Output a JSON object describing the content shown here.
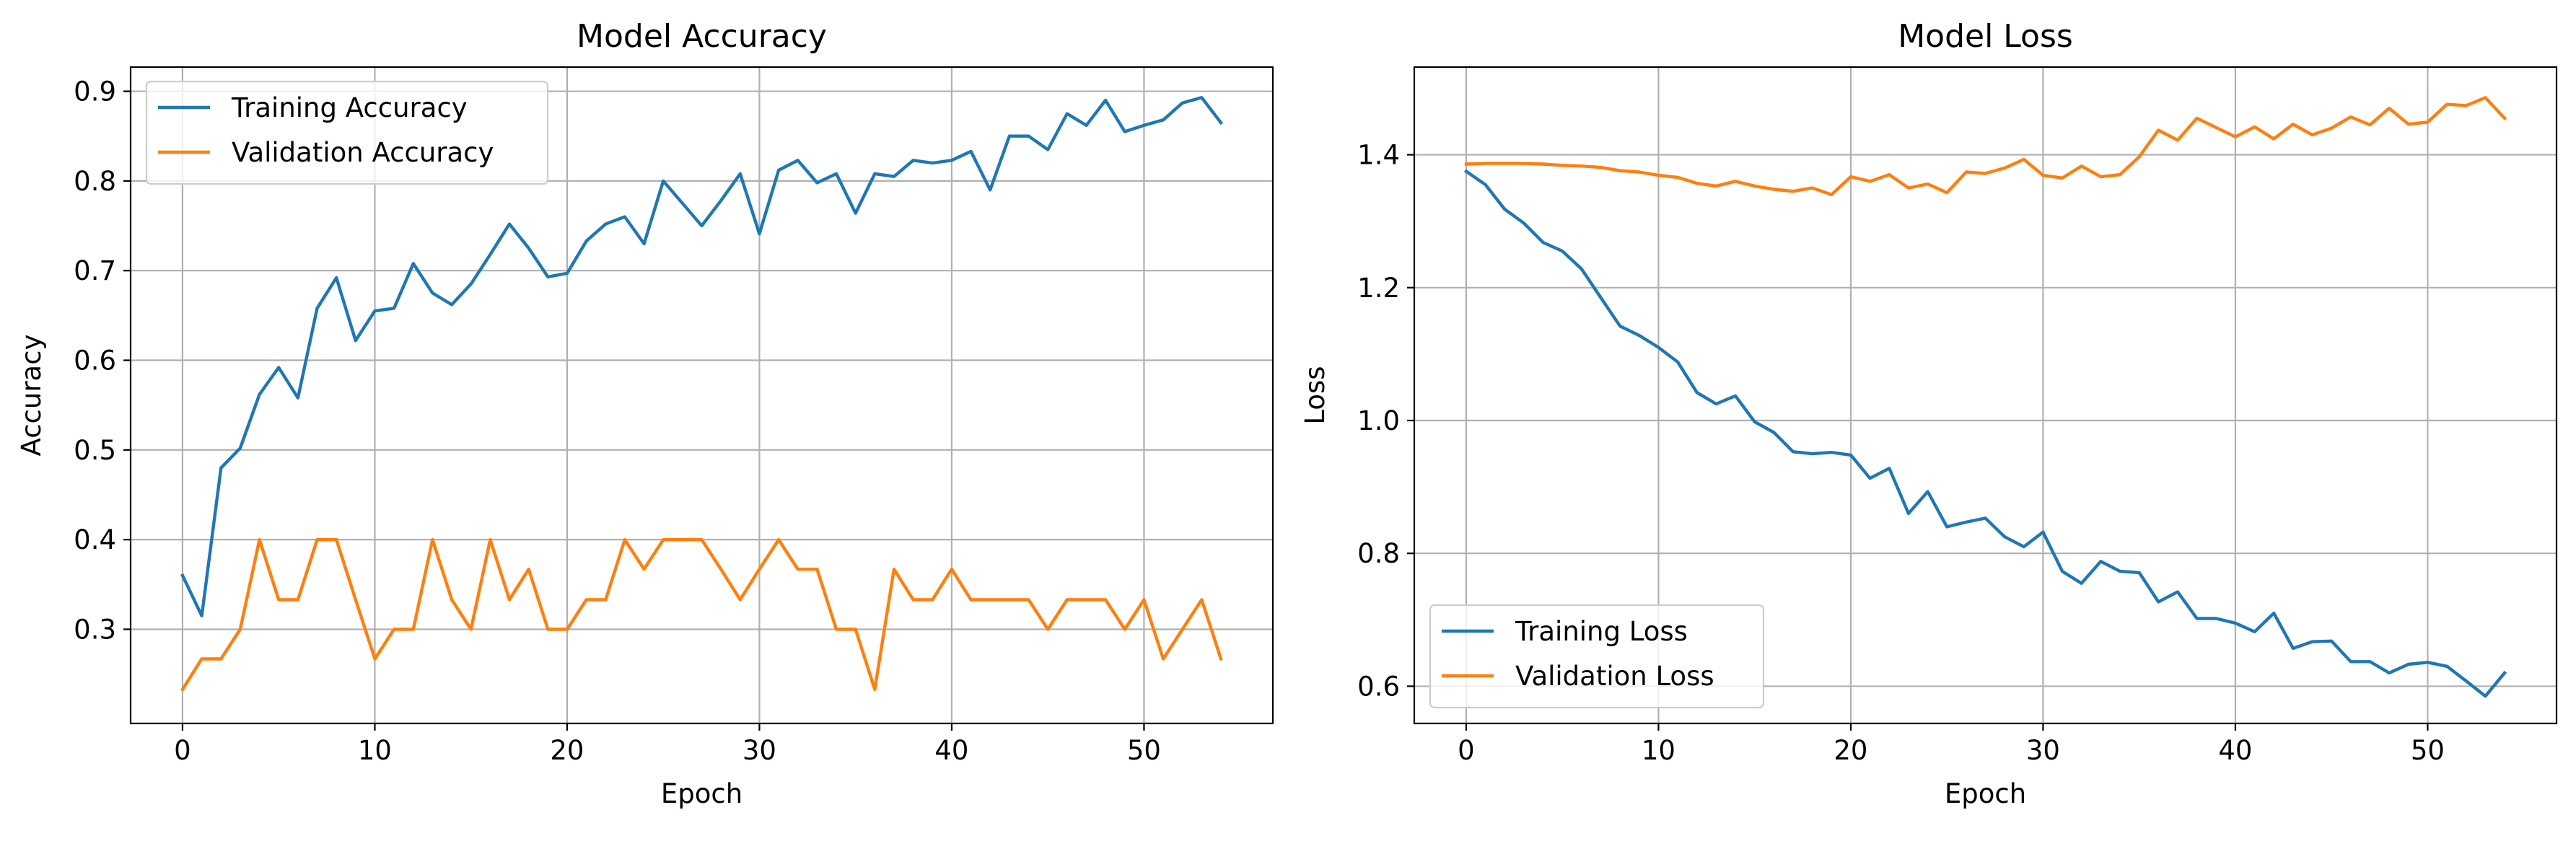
{
  "chart_data": [
    {
      "type": "line",
      "title": "Model Accuracy",
      "xlabel": "Epoch",
      "ylabel": "Accuracy",
      "xlim": [
        -2.7,
        56.7
      ],
      "ylim": [
        0.195,
        0.927
      ],
      "xticks": [
        0,
        10,
        20,
        30,
        40,
        50
      ],
      "yticks": [
        0.3,
        0.4,
        0.5,
        0.6,
        0.7,
        0.8,
        0.9
      ],
      "ytick_decimals": 1,
      "grid": true,
      "legend_position": "top-left",
      "series": [
        {
          "name": "Training Accuracy",
          "color": "#1f77b4",
          "values": [
            0.36,
            0.315,
            0.48,
            0.502,
            0.562,
            0.592,
            0.558,
            0.658,
            0.692,
            0.622,
            0.655,
            0.658,
            0.708,
            0.675,
            0.662,
            0.685,
            0.718,
            0.752,
            0.725,
            0.693,
            0.697,
            0.733,
            0.752,
            0.76,
            0.73,
            0.8,
            0.775,
            0.75,
            0.778,
            0.808,
            0.741,
            0.812,
            0.823,
            0.798,
            0.808,
            0.764,
            0.808,
            0.805,
            0.823,
            0.82,
            0.823,
            0.833,
            0.79,
            0.85,
            0.85,
            0.835,
            0.875,
            0.862,
            0.89,
            0.855,
            0.862,
            0.868,
            0.887,
            0.893,
            0.865
          ]
        },
        {
          "name": "Validation Accuracy",
          "color": "#ff7f0e",
          "values": [
            0.233,
            0.267,
            0.267,
            0.3,
            0.4,
            0.333,
            0.333,
            0.4,
            0.4,
            0.333,
            0.267,
            0.3,
            0.3,
            0.4,
            0.333,
            0.3,
            0.4,
            0.333,
            0.367,
            0.3,
            0.3,
            0.333,
            0.333,
            0.4,
            0.367,
            0.4,
            0.4,
            0.4,
            0.367,
            0.333,
            0.367,
            0.4,
            0.367,
            0.367,
            0.3,
            0.3,
            0.233,
            0.367,
            0.333,
            0.333,
            0.367,
            0.333,
            0.333,
            0.333,
            0.333,
            0.3,
            0.333,
            0.333,
            0.333,
            0.3,
            0.333,
            0.267,
            0.3,
            0.333,
            0.267
          ]
        }
      ]
    },
    {
      "type": "line",
      "title": "Model Loss",
      "xlabel": "Epoch",
      "ylabel": "Loss",
      "xlim": [
        -2.7,
        56.7
      ],
      "ylim": [
        0.544,
        1.532
      ],
      "xticks": [
        0,
        10,
        20,
        30,
        40,
        50
      ],
      "yticks": [
        0.6,
        0.8,
        1.0,
        1.2,
        1.4
      ],
      "ytick_decimals": 1,
      "grid": true,
      "legend_position": "bottom-left",
      "series": [
        {
          "name": "Training Loss",
          "color": "#1f77b4",
          "values": [
            1.375,
            1.355,
            1.318,
            1.297,
            1.268,
            1.255,
            1.228,
            1.185,
            1.142,
            1.128,
            1.11,
            1.088,
            1.042,
            1.025,
            1.037,
            0.998,
            0.982,
            0.953,
            0.95,
            0.952,
            0.948,
            0.913,
            0.928,
            0.86,
            0.893,
            0.84,
            0.847,
            0.853,
            0.825,
            0.81,
            0.832,
            0.773,
            0.755,
            0.788,
            0.773,
            0.771,
            0.727,
            0.742,
            0.702,
            0.702,
            0.695,
            0.682,
            0.71,
            0.657,
            0.667,
            0.668,
            0.637,
            0.637,
            0.62,
            0.633,
            0.636,
            0.63,
            0.608,
            0.585,
            0.62
          ]
        },
        {
          "name": "Validation Loss",
          "color": "#ff7f0e",
          "values": [
            1.386,
            1.387,
            1.387,
            1.387,
            1.386,
            1.384,
            1.383,
            1.381,
            1.376,
            1.374,
            1.369,
            1.366,
            1.357,
            1.353,
            1.36,
            1.353,
            1.348,
            1.345,
            1.35,
            1.34,
            1.367,
            1.36,
            1.37,
            1.35,
            1.356,
            1.343,
            1.374,
            1.372,
            1.38,
            1.393,
            1.369,
            1.365,
            1.383,
            1.367,
            1.37,
            1.397,
            1.437,
            1.422,
            1.455,
            1.441,
            1.427,
            1.442,
            1.424,
            1.446,
            1.43,
            1.44,
            1.457,
            1.445,
            1.47,
            1.446,
            1.449,
            1.476,
            1.474,
            1.486,
            1.455
          ]
        }
      ]
    }
  ]
}
